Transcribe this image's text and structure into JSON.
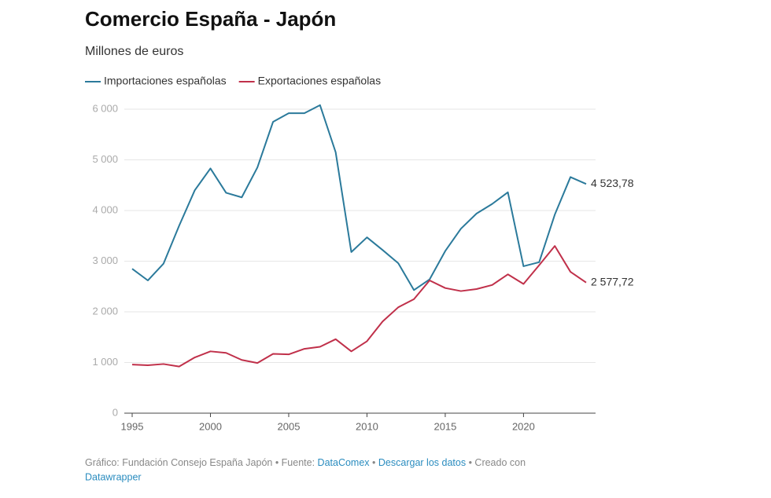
{
  "chart_data": {
    "type": "line",
    "title": "Comercio España - Japón",
    "subtitle": "Millones de euros",
    "x": [
      1995,
      1996,
      1997,
      1998,
      1999,
      2000,
      2001,
      2002,
      2003,
      2004,
      2005,
      2006,
      2007,
      2008,
      2009,
      2010,
      2011,
      2012,
      2013,
      2014,
      2015,
      2016,
      2017,
      2018,
      2019,
      2020,
      2021,
      2022,
      2023,
      2024
    ],
    "series": [
      {
        "name": "Importaciones españolas",
        "color": "#2b7a9b",
        "values": [
          2850,
          2620,
          2950,
          3700,
          4400,
          4830,
          4350,
          4260,
          4850,
          5750,
          5920,
          5920,
          6080,
          5150,
          3180,
          3470,
          3220,
          2960,
          2430,
          2640,
          3200,
          3640,
          3940,
          4130,
          4360,
          2900,
          2980,
          3920,
          4660,
          4523.78
        ],
        "value_labels": [
          null,
          null,
          null,
          null,
          null,
          null,
          null,
          null,
          null,
          null,
          null,
          null,
          null,
          null,
          null,
          null,
          null,
          null,
          null,
          null,
          null,
          null,
          null,
          null,
          null,
          null,
          null,
          null,
          null,
          "4 523,78"
        ]
      },
      {
        "name": "Exportaciones españolas",
        "color": "#c0304a",
        "values": [
          960,
          945,
          970,
          920,
          1100,
          1220,
          1190,
          1050,
          990,
          1170,
          1160,
          1270,
          1310,
          1460,
          1220,
          1420,
          1810,
          2090,
          2250,
          2620,
          2470,
          2410,
          2450,
          2530,
          2740,
          2550,
          2920,
          3300,
          2790,
          2577.72
        ],
        "value_labels": [
          null,
          null,
          null,
          null,
          null,
          null,
          null,
          null,
          null,
          null,
          null,
          null,
          null,
          null,
          null,
          null,
          null,
          null,
          null,
          null,
          null,
          null,
          null,
          null,
          null,
          null,
          null,
          null,
          null,
          "2 577,72"
        ]
      }
    ],
    "xlim": [
      1995,
      2024
    ],
    "xticks": [
      1995,
      2000,
      2005,
      2010,
      2015,
      2020
    ],
    "ylim": [
      0,
      6000
    ],
    "yticks": [
      0,
      {
        "value": 1000,
        "label": "1 000"
      },
      {
        "value": 2000,
        "label": "2 000"
      },
      {
        "value": 3000,
        "label": "3 000"
      },
      {
        "value": 4000,
        "label": "4 000"
      },
      {
        "value": 5000,
        "label": "5 000"
      },
      {
        "value": 6000,
        "label": "6 000"
      }
    ],
    "grid": true,
    "footer": [
      "Gráfico: Fundación Consejo España Japón • Fuente:",
      "DataComex",
      "•",
      "Descargar los datos",
      "• Creado con",
      "Datawrapper"
    ]
  }
}
